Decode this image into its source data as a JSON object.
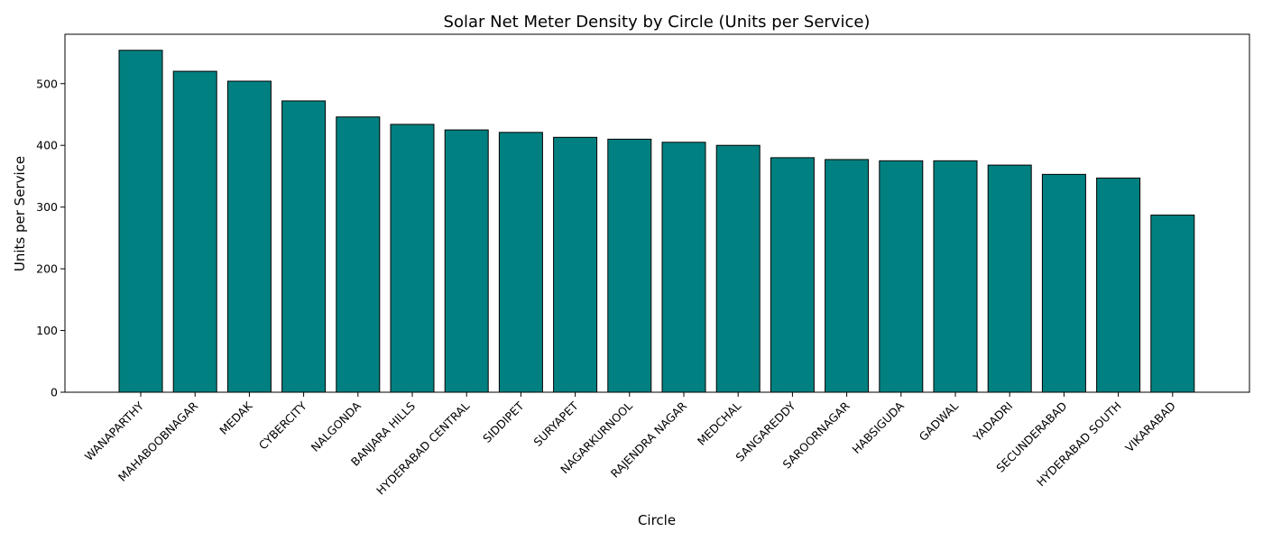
{
  "chart_data": {
    "type": "bar",
    "title": "Solar Net Meter Density by Circle (Units per Service)",
    "xlabel": "Circle",
    "ylabel": "Units per Service",
    "ylim": [
      0,
      580
    ],
    "yticks": [
      0,
      100,
      200,
      300,
      400,
      500
    ],
    "bar_color": "#008080",
    "edge_color": "#000000",
    "grid": false,
    "categories": [
      "WANAPARTHY",
      "MAHABOOBNAGAR",
      "MEDAK",
      "CYBERCITY",
      "NALGONDA",
      "BANJARA HILLS",
      "HYDERABAD CENTRAL",
      "SIDDIPET",
      "SURYAPET",
      "NAGARKURNOOL",
      "RAJENDRA NAGAR",
      "MEDCHAL",
      "SANGAREDDY",
      "SAROORNAGAR",
      "HABSIGUDA",
      "GADWAL",
      "YADADRI",
      "SECUNDERABAD",
      "HYDERABAD SOUTH",
      "VIKARABAD"
    ],
    "values": [
      554,
      520,
      504,
      472,
      446,
      434,
      425,
      421,
      413,
      410,
      405,
      400,
      380,
      377,
      375,
      375,
      368,
      353,
      347,
      287
    ]
  }
}
